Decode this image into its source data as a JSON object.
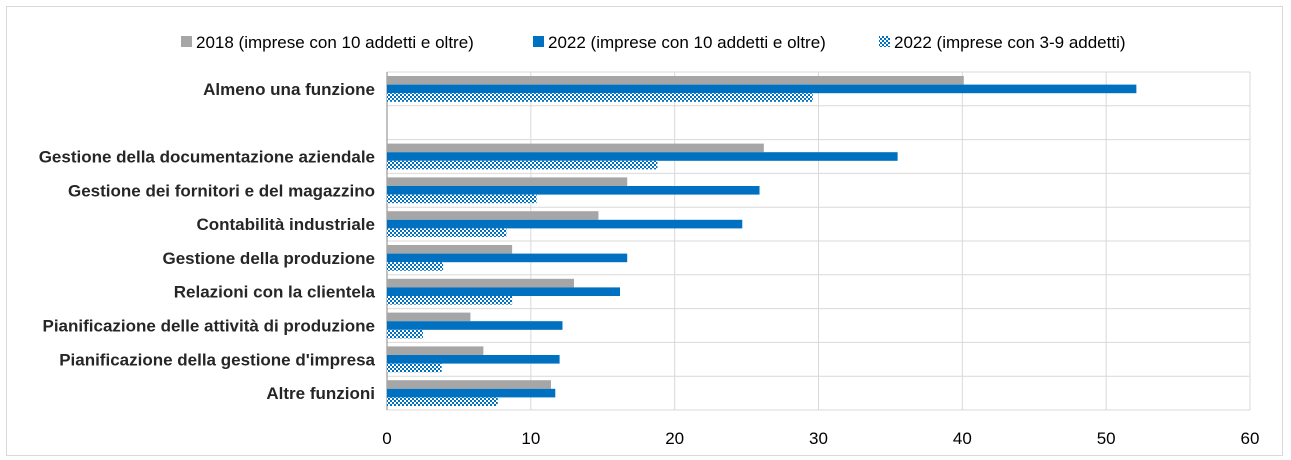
{
  "chart_data": {
    "type": "bar",
    "orientation": "horizontal",
    "categories": [
      "Almeno una funzione",
      "",
      "Gestione della documentazione aziendale",
      "Gestione dei fornitori e del magazzino",
      "Contabilità industriale",
      "Gestione della produzione",
      "Relazioni con la clientela",
      "Pianificazione delle attività di produzione",
      "Pianificazione della gestione d'impresa",
      "Altre funzioni"
    ],
    "series": [
      {
        "name": "2018 (imprese con 10 addetti e oltre)",
        "color": "#a6a6a6",
        "pattern": "solid",
        "values": [
          40.1,
          null,
          26.2,
          16.7,
          14.7,
          8.7,
          13.0,
          5.8,
          6.7,
          11.4
        ]
      },
      {
        "name": "2022 (imprese con 10 addetti e oltre)",
        "color": "#0070c0",
        "pattern": "solid",
        "values": [
          52.1,
          null,
          35.5,
          25.9,
          24.7,
          16.7,
          16.2,
          12.2,
          12.0,
          11.7
        ]
      },
      {
        "name": "2022 (imprese con 3-9 addetti)",
        "color": "#0070c0",
        "pattern": "dotted",
        "values": [
          29.6,
          null,
          18.8,
          10.4,
          8.3,
          3.9,
          8.7,
          2.5,
          3.8,
          7.7
        ]
      }
    ],
    "xlim": [
      0,
      60
    ],
    "xticks": [
      "0",
      "10",
      "20",
      "30",
      "40",
      "50",
      "60"
    ],
    "grid": true,
    "legend_position": "top"
  }
}
